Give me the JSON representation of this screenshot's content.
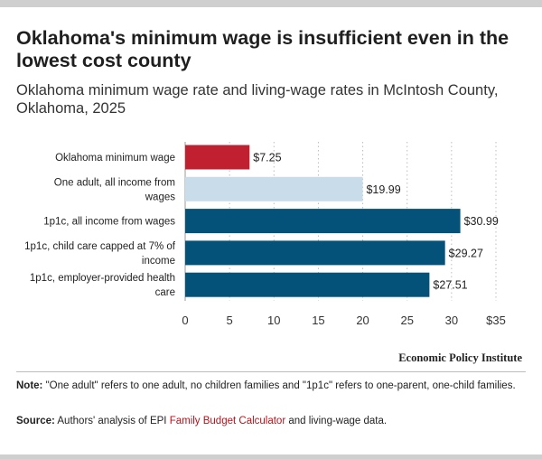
{
  "title": "Oklahoma's minimum wage is insufficient even in the lowest cost county",
  "subtitle": "Oklahoma minimum wage rate and living-wage rates in McIntosh County, Oklahoma, 2025",
  "chart_data": {
    "type": "bar",
    "orientation": "horizontal",
    "categories": [
      [
        "Oklahoma minimum wage"
      ],
      [
        "One adult, all income from",
        "wages"
      ],
      [
        "1p1c, all income from wages"
      ],
      [
        "1p1c, child care capped at 7% of",
        "income"
      ],
      [
        "1p1c, employer-provided health",
        "care"
      ]
    ],
    "values": [
      7.25,
      19.99,
      30.99,
      29.27,
      27.51
    ],
    "value_labels": [
      "$7.25",
      "$19.99",
      "$30.99",
      "$29.27",
      "$27.51"
    ],
    "colors": [
      "#c0202f",
      "#c9dce9",
      "#04527a",
      "#04527a",
      "#04527a"
    ],
    "xlim": [
      0,
      35
    ],
    "xticks": [
      0,
      5,
      10,
      15,
      20,
      25,
      30,
      35
    ],
    "xtick_labels": [
      "0",
      "5",
      "10",
      "15",
      "20",
      "25",
      "30",
      "$35"
    ],
    "grid": "vertical-dotted",
    "xlabel": "",
    "ylabel": ""
  },
  "brand": "Economic Policy Institute",
  "note": {
    "label": "Note:",
    "text": "\"One adult\" refers to one adult, no children families and \"1p1c\" refers to one-parent, one-child families."
  },
  "source": {
    "label": "Source:",
    "pre": "Authors' analysis of EPI",
    "link": "Family Budget Calculator",
    "post": "and living-wage data."
  },
  "colors": {
    "accent": "#b5121b",
    "rule": "#cfcfcf"
  }
}
